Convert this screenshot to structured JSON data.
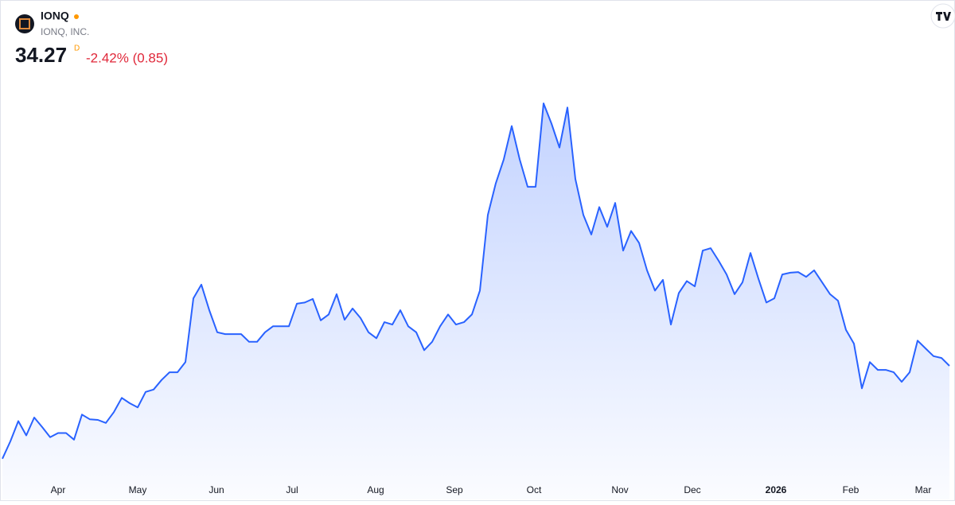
{
  "chart_data": {
    "type": "area",
    "title": "IONQ",
    "subtitle": "IONQ, INC.",
    "price": "34.27",
    "price_flag": "D",
    "change": "-2.42% (0.85)",
    "color": "#2962ff",
    "values": [
      18.7,
      21.6,
      25.0,
      22.6,
      25.6,
      24.0,
      22.3,
      23.0,
      23.0,
      21.9,
      26.1,
      25.3,
      25.2,
      24.7,
      26.5,
      28.9,
      28.0,
      27.3,
      29.9,
      30.3,
      31.9,
      33.2,
      33.2,
      34.9,
      45.6,
      47.9,
      43.6,
      39.9,
      39.6,
      39.6,
      39.6,
      38.3,
      38.3,
      39.9,
      40.9,
      40.9,
      40.9,
      44.7,
      44.9,
      45.5,
      41.9,
      42.9,
      46.3,
      42.0,
      43.9,
      42.3,
      39.9,
      38.9,
      41.6,
      41.2,
      43.6,
      40.9,
      39.9,
      36.9,
      38.3,
      40.9,
      42.9,
      41.2,
      41.6,
      42.9,
      46.9,
      59.6,
      64.9,
      68.9,
      74.5,
      68.9,
      64.3,
      64.3,
      78.3,
      74.9,
      70.9,
      77.6,
      65.6,
      59.6,
      56.3,
      60.9,
      57.6,
      61.6,
      53.6,
      56.9,
      54.9,
      50.3,
      46.9,
      48.7,
      41.2,
      46.5,
      48.5,
      47.6,
      53.6,
      54.0,
      51.9,
      49.6,
      46.3,
      48.3,
      53.2,
      48.9,
      44.9,
      45.6,
      49.6,
      49.9,
      50.0,
      49.2,
      50.3,
      48.3,
      46.3,
      45.2,
      40.3,
      38.0,
      30.5,
      34.9,
      33.6,
      33.6,
      33.2,
      31.6,
      33.2,
      38.5,
      37.2,
      35.9,
      35.6,
      34.27
    ],
    "xlim": [
      0,
      119
    ],
    "xticks": [
      {
        "value": 7,
        "label": "Apr"
      },
      {
        "value": 17,
        "label": "May"
      },
      {
        "value": 26.9,
        "label": "Jun"
      },
      {
        "value": 36.4,
        "label": "Jul"
      },
      {
        "value": 46.9,
        "label": "Aug"
      },
      {
        "value": 56.8,
        "label": "Sep"
      },
      {
        "value": 66.8,
        "label": "Oct"
      },
      {
        "value": 77.6,
        "label": "Nov"
      },
      {
        "value": 86.7,
        "label": "Dec"
      },
      {
        "value": 97.2,
        "label": "2026"
      },
      {
        "value": 106.6,
        "label": "Feb"
      },
      {
        "value": 115.7,
        "label": "Mar"
      }
    ],
    "ylim": [
      15.6,
      82.3
    ]
  }
}
